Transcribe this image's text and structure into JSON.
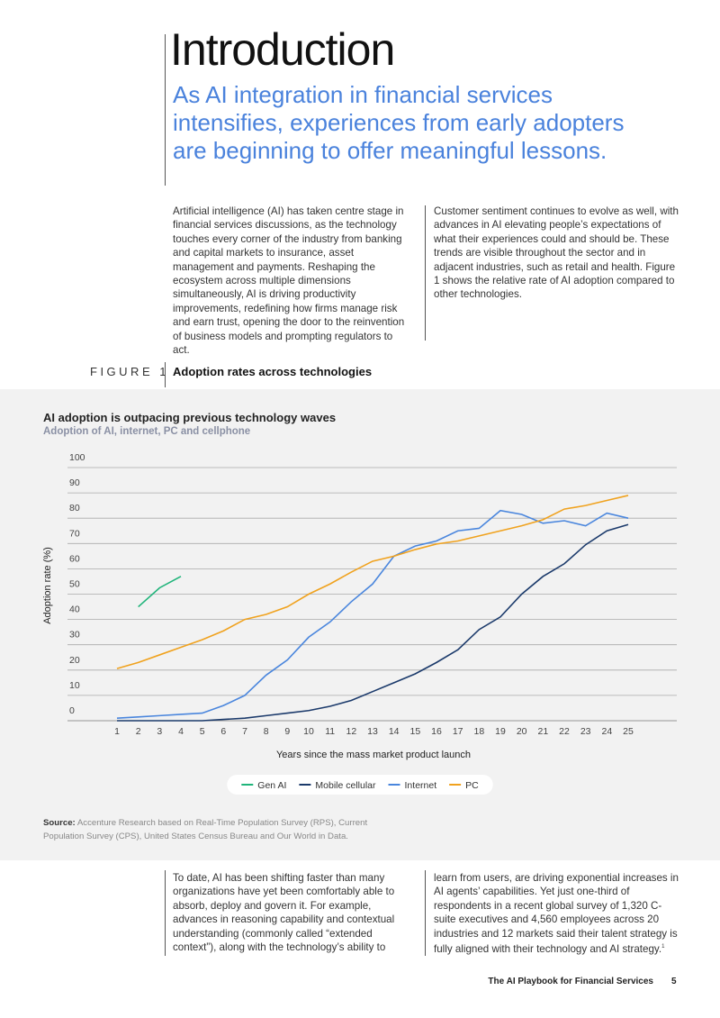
{
  "header": {
    "title": "Introduction",
    "subtitle": "As AI integration in financial services intensifies, experiences from early adopters are beginning to offer meaningful lessons."
  },
  "intro": {
    "left": "Artificial intelligence (AI) has taken centre stage in financial services discussions, as the technology touches every corner of the industry from banking and capital markets to insurance, asset management and payments. Reshaping the ecosystem across multiple dimensions simultaneously, AI is driving productivity improvements, redefining how firms manage risk and earn trust, opening the door to the reinvention of business models and prompting regulators to act.",
    "right": "Customer sentiment continues to evolve as well, with advances in AI elevating people’s expectations of what their experiences could and should be. These trends are visible throughout the sector and in adjacent industries, such as retail and health. Figure 1 shows the relative rate of AI adoption compared to other technologies."
  },
  "figure": {
    "label": "FIGURE 1",
    "caption": "Adoption rates across technologies",
    "source_label": "Source:",
    "source_text": "Accenture Research based on Real-Time Population Survey (RPS), Current Population Survey (CPS), United States Census Bureau and Our World in Data."
  },
  "chart_data": {
    "type": "line",
    "title": "AI adoption is outpacing previous technology waves",
    "subtitle": "Adoption of AI, internet, PC and cellphone",
    "x_label": "Years since the mass market product launch",
    "y_label": "Adoption rate (%)",
    "x": [
      1,
      2,
      3,
      4,
      5,
      6,
      7,
      8,
      9,
      10,
      11,
      12,
      13,
      14,
      15,
      16,
      17,
      18,
      19,
      20,
      21,
      22,
      23,
      24,
      25
    ],
    "xlim": [
      1,
      25
    ],
    "xticks": [
      1,
      2,
      3,
      4,
      5,
      6,
      7,
      8,
      9,
      10,
      11,
      12,
      13,
      14,
      15,
      16,
      17,
      18,
      19,
      20,
      21,
      22,
      23,
      24,
      25
    ],
    "ylim": [
      0,
      100
    ],
    "yticks": [
      0,
      10,
      20,
      30,
      40,
      50,
      60,
      70,
      80,
      90,
      100
    ],
    "grid": true,
    "legend": "bottom",
    "series": [
      {
        "name": "Gen AI",
        "color": "#1fb47a",
        "values": [
          null,
          45,
          52.5,
          57,
          null,
          null,
          null,
          null,
          null,
          null,
          null,
          null,
          null,
          null,
          null,
          null,
          null,
          null,
          null,
          null,
          null,
          null,
          null,
          null,
          null
        ]
      },
      {
        "name": "Mobile cellular",
        "color": "#1b3a6b",
        "values": [
          0,
          0,
          0,
          0,
          0,
          0.5,
          1,
          2,
          3,
          4,
          5.7,
          8,
          11.5,
          15,
          18.5,
          23,
          28,
          36,
          41,
          50,
          57,
          62,
          69.5,
          75,
          77.5
        ]
      },
      {
        "name": "Internet",
        "color": "#4a86dd",
        "values": [
          1,
          1.5,
          2,
          2.5,
          3,
          6,
          10,
          18,
          24,
          33,
          39,
          47,
          54,
          65,
          69,
          71,
          75,
          76,
          83,
          81.5,
          78,
          79,
          77,
          82,
          80
        ]
      },
      {
        "name": "PC",
        "color": "#f0a21e",
        "values": [
          20.6,
          23,
          26,
          29,
          32,
          35.5,
          40,
          42,
          45,
          50,
          54,
          58.7,
          63,
          65,
          67.6,
          69.8,
          71,
          73,
          75,
          77,
          79.4,
          83.6,
          85,
          87,
          89
        ]
      }
    ]
  },
  "closing": {
    "left": "To date, AI has been shifting faster than many organizations have yet been comfortably able to absorb, deploy and govern it. For example, advances in reasoning capability and contextual understanding (commonly called “extended context”), along with the technology’s ability to",
    "right": "learn from users, are driving exponential increases in AI agents’ capabilities. Yet just one-third of respondents in a recent global survey of 1,320 C-suite executives and 4,560 employees across 20 industries and 12 markets said their talent strategy is fully aligned with their technology and AI strategy.",
    "footnote_mark": "1"
  },
  "footer": {
    "title": "The AI Playbook for Financial Services",
    "page": "5"
  }
}
